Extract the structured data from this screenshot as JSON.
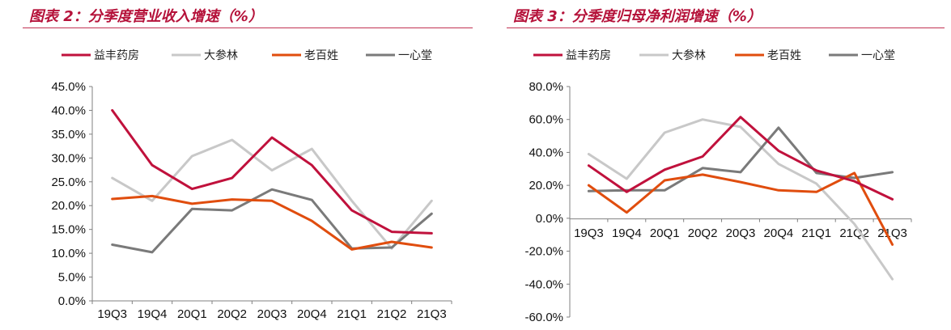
{
  "chart_data": [
    {
      "type": "line",
      "title": "图表 2：分季度营业收入增速（%）",
      "categories": [
        "19Q3",
        "19Q4",
        "20Q1",
        "20Q2",
        "20Q3",
        "20Q4",
        "21Q1",
        "21Q2",
        "21Q3"
      ],
      "ylim": [
        0,
        45
      ],
      "yticks": [
        0,
        5,
        10,
        15,
        20,
        25,
        30,
        35,
        40,
        45
      ],
      "ytick_labels": [
        "0.0%",
        "5.0%",
        "10.0%",
        "15.0%",
        "20.0%",
        "25.0%",
        "30.0%",
        "35.0%",
        "40.0%",
        "45.0%"
      ],
      "legend_position": "top",
      "grid": false,
      "series": [
        {
          "name": "益丰药房",
          "color": "#c0113c",
          "values": [
            40.0,
            28.5,
            23.5,
            25.8,
            34.3,
            28.5,
            19.0,
            14.5,
            14.2
          ]
        },
        {
          "name": "大参林",
          "color": "#c8c8c8",
          "values": [
            25.8,
            21.0,
            30.4,
            33.8,
            27.4,
            31.9,
            21.0,
            11.0,
            21.0
          ]
        },
        {
          "name": "老百姓",
          "color": "#e04d0e",
          "values": [
            21.4,
            22.0,
            20.4,
            21.3,
            21.0,
            16.8,
            10.8,
            12.4,
            11.2
          ]
        },
        {
          "name": "一心堂",
          "color": "#7a7a7a",
          "values": [
            11.8,
            10.2,
            19.3,
            19.0,
            23.4,
            21.2,
            11.0,
            11.2,
            18.3
          ]
        }
      ]
    },
    {
      "type": "line",
      "title": "图表 3：分季度归母净利润增速（%）",
      "categories": [
        "19Q3",
        "19Q4",
        "20Q1",
        "20Q2",
        "20Q3",
        "20Q4",
        "21Q1",
        "21Q2",
        "21Q3"
      ],
      "ylim": [
        -60,
        80
      ],
      "yticks": [
        -60,
        -40,
        -20,
        0,
        20,
        40,
        60,
        80
      ],
      "ytick_labels": [
        "-60.0%",
        "-40.0%",
        "-20.0%",
        "0.0%",
        "20.0%",
        "40.0%",
        "60.0%",
        "80.0%"
      ],
      "legend_position": "top",
      "grid": false,
      "series": [
        {
          "name": "益丰药房",
          "color": "#c0113c",
          "values": [
            32,
            16,
            29.5,
            37.5,
            61.5,
            41,
            29,
            22.5,
            11.5
          ]
        },
        {
          "name": "大参林",
          "color": "#c8c8c8",
          "values": [
            39,
            24,
            52,
            60,
            55.5,
            33,
            21,
            -3.5,
            -37
          ]
        },
        {
          "name": "老百姓",
          "color": "#e04d0e",
          "values": [
            20,
            3.5,
            23,
            26.5,
            22,
            17,
            16,
            27.5,
            -16
          ]
        },
        {
          "name": "一心堂",
          "color": "#7a7a7a",
          "values": [
            16.5,
            17,
            17,
            30.5,
            28,
            55,
            27.5,
            24.5,
            28
          ]
        }
      ]
    }
  ]
}
